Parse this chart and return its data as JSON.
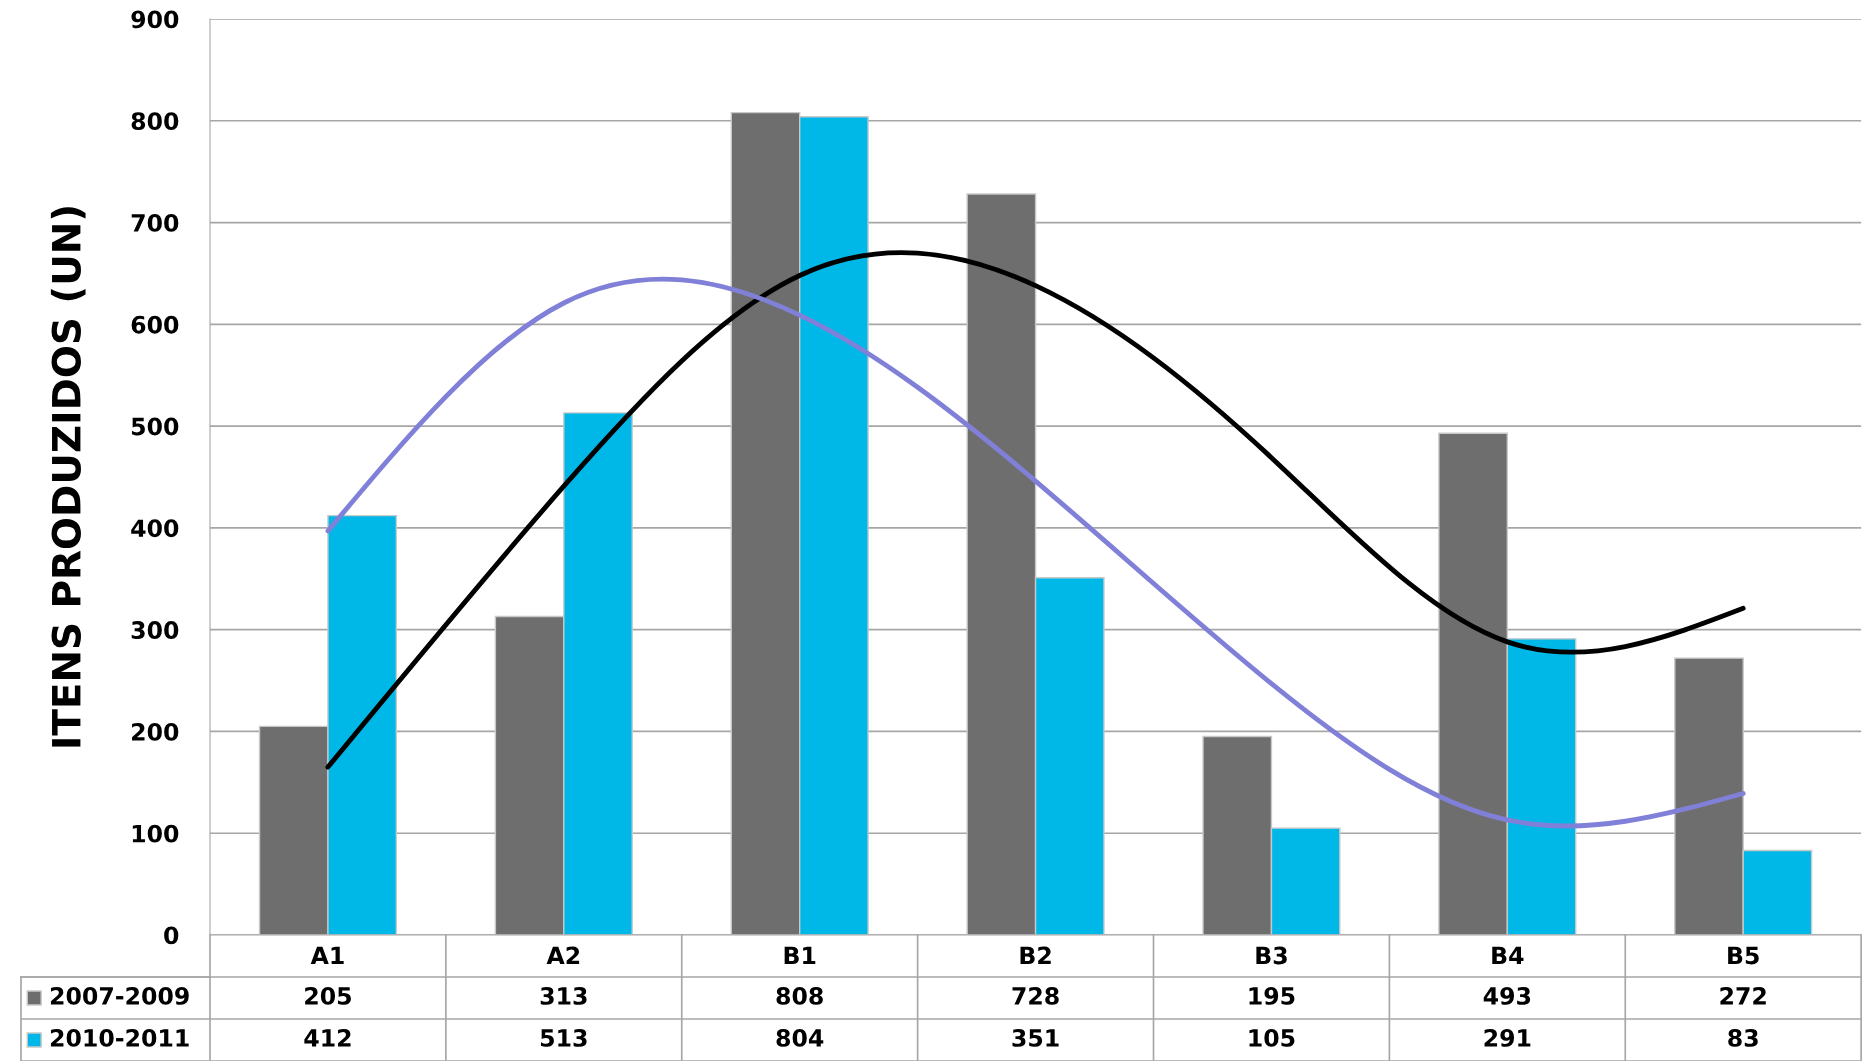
{
  "chart_data": {
    "type": "bar",
    "ylabel": "ITENS PRODUZIDOS (UN)",
    "categories": [
      "A1",
      "A2",
      "B1",
      "B2",
      "B3",
      "B4",
      "B5"
    ],
    "series": [
      {
        "name": "2007-2009",
        "color": "#6e6e6e",
        "values": [
          205,
          313,
          808,
          728,
          195,
          493,
          272
        ]
      },
      {
        "name": "2010-2011",
        "color": "#00b8e8",
        "values": [
          412,
          513,
          804,
          351,
          105,
          291,
          83
        ]
      },
      {
        "type": "line",
        "color": "#000000",
        "values": [
          165,
          441,
          648,
          638,
          469,
          288,
          321
        ],
        "value_labels": [
          null,
          null,
          null,
          null,
          null,
          null,
          null
        ]
      },
      {
        "type": "line",
        "color": "#8080d8",
        "values": [
          397,
          621,
          609,
          446,
          247,
          113,
          139
        ],
        "value_labels": [
          null,
          null,
          null,
          null,
          null,
          null,
          null
        ]
      }
    ],
    "ylim": [
      0,
      900
    ],
    "yticks": [
      0,
      100,
      200,
      300,
      400,
      500,
      600,
      700,
      800,
      900
    ],
    "grid": "y",
    "legend": "bottom",
    "data_labels": true,
    "line_style": "solid",
    "marker": "none"
  }
}
